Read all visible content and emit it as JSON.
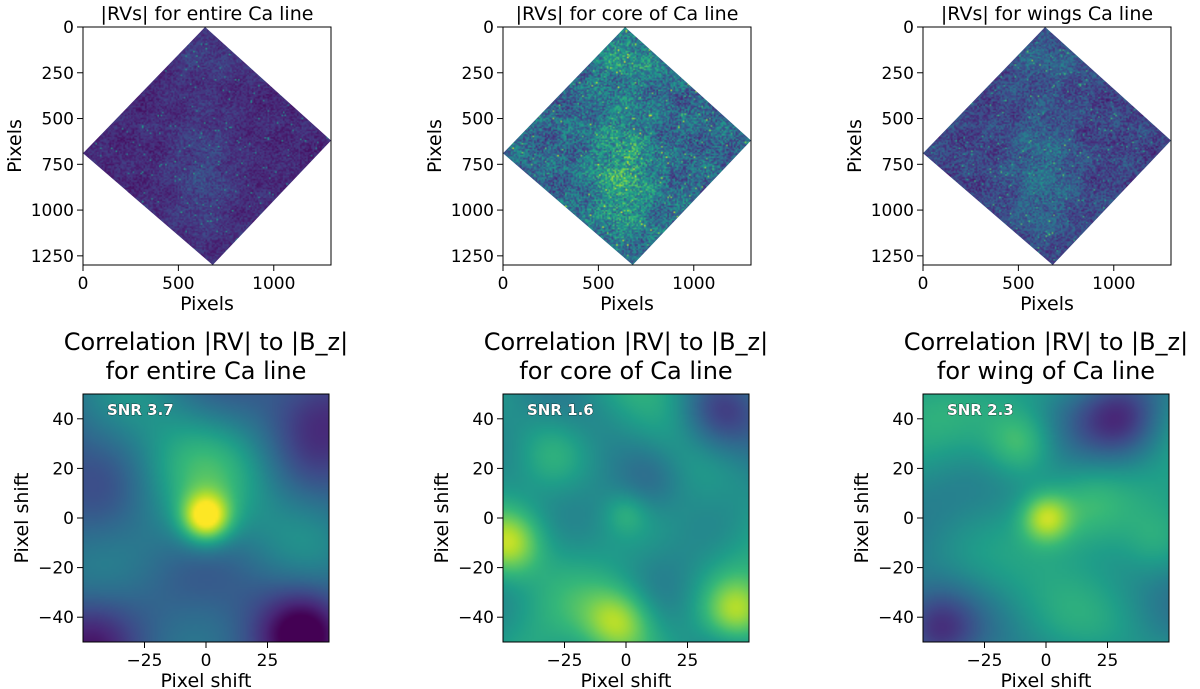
{
  "chart_data": [
    {
      "type": "heatmap",
      "title": "|RVs| for entire Ca line",
      "xlabel": "Pixels",
      "ylabel": "Pixels",
      "xlim": [
        0,
        1300
      ],
      "ylim": [
        1300,
        0
      ],
      "xticks": [
        0,
        500,
        1000
      ],
      "xtick_labels": [
        "0",
        "500",
        "1000"
      ],
      "yticks": [
        0,
        250,
        500,
        750,
        1000,
        1250
      ],
      "ytick_labels": [
        "0",
        "250",
        "500",
        "750",
        "1000",
        "1250"
      ],
      "diamond_vertices": [
        [
          640,
          0
        ],
        [
          1300,
          620
        ],
        [
          680,
          1300
        ],
        [
          0,
          690
        ]
      ],
      "colormap": "viridis",
      "intensity": 0.15,
      "structure": "uniform low-amplitude speckle"
    },
    {
      "type": "heatmap",
      "title": "|RVs| for core of Ca line",
      "xlabel": "Pixels",
      "ylabel": "Pixels",
      "xlim": [
        0,
        1300
      ],
      "ylim": [
        1300,
        0
      ],
      "xticks": [
        0,
        500,
        1000
      ],
      "xtick_labels": [
        "0",
        "500",
        "1000"
      ],
      "yticks": [
        0,
        250,
        500,
        750,
        1000,
        1250
      ],
      "ytick_labels": [
        "0",
        "250",
        "500",
        "750",
        "1000",
        "1250"
      ],
      "diamond_vertices": [
        [
          640,
          0
        ],
        [
          1300,
          620
        ],
        [
          680,
          1300
        ],
        [
          0,
          690
        ]
      ],
      "colormap": "viridis",
      "intensity": 0.42,
      "structure": "bright filamentary structure near center and top"
    },
    {
      "type": "heatmap",
      "title": "|RVs| for wings Ca line",
      "xlabel": "Pixels",
      "ylabel": "Pixels",
      "xlim": [
        0,
        1300
      ],
      "ylim": [
        1300,
        0
      ],
      "xticks": [
        0,
        500,
        1000
      ],
      "xtick_labels": [
        "0",
        "500",
        "1000"
      ],
      "yticks": [
        0,
        250,
        500,
        750,
        1000,
        1250
      ],
      "ytick_labels": [
        "0",
        "250",
        "500",
        "750",
        "1000",
        "1250"
      ],
      "diamond_vertices": [
        [
          640,
          0
        ],
        [
          1300,
          620
        ],
        [
          680,
          1300
        ],
        [
          0,
          690
        ]
      ],
      "colormap": "viridis",
      "intensity": 0.26,
      "structure": "moderate speckle with brighter patches"
    },
    {
      "type": "heatmap",
      "title_lines": [
        "Correlation |RV| to |B_z|",
        "for entire Ca line"
      ],
      "xlabel": "Pixel shift",
      "ylabel": "Pixel shift",
      "xlim": [
        -50,
        50
      ],
      "ylim": [
        -50,
        50
      ],
      "xticks": [
        -25,
        0,
        25
      ],
      "xtick_labels": [
        "−25",
        "0",
        "25"
      ],
      "yticks": [
        40,
        20,
        0,
        -20,
        -40
      ],
      "ytick_labels": [
        "40",
        "20",
        "0",
        "−20",
        "−40"
      ],
      "annotation": "SNR 3.7",
      "colormap": "viridis",
      "background_level": 0.33,
      "features": [
        {
          "x": 0,
          "y": 0,
          "amplitude": 0.58,
          "width": 7
        },
        {
          "x": 0,
          "y": 5,
          "amplitude": 0.22,
          "width": 22
        },
        {
          "x": -15,
          "y": 25,
          "amplitude": 0.08,
          "width": 16
        },
        {
          "x": 40,
          "y": -48,
          "amplitude": -0.28,
          "width": 12
        },
        {
          "x": -48,
          "y": -48,
          "amplitude": -0.22,
          "width": 14
        },
        {
          "x": 45,
          "y": 45,
          "amplitude": -0.18,
          "width": 14
        }
      ]
    },
    {
      "type": "heatmap",
      "title_lines": [
        "Correlation |RV| to |B_z|",
        "for core of Ca line"
      ],
      "xlabel": "Pixel shift",
      "ylabel": "Pixel shift",
      "xlim": [
        -50,
        50
      ],
      "ylim": [
        -50,
        50
      ],
      "xticks": [
        -25,
        0,
        25
      ],
      "xtick_labels": [
        "−25",
        "0",
        "25"
      ],
      "yticks": [
        40,
        20,
        0,
        -20,
        -40
      ],
      "ytick_labels": [
        "40",
        "20",
        "0",
        "−20",
        "−40"
      ],
      "annotation": "SNR 1.6",
      "colormap": "viridis",
      "background_level": 0.52,
      "features": [
        {
          "x": -3,
          "y": -42,
          "amplitude": 0.38,
          "width": 10
        },
        {
          "x": -48,
          "y": -10,
          "amplitude": 0.33,
          "width": 9
        },
        {
          "x": 45,
          "y": -38,
          "amplitude": 0.3,
          "width": 9
        },
        {
          "x": 38,
          "y": 42,
          "amplitude": -0.3,
          "width": 12
        },
        {
          "x": 10,
          "y": 15,
          "amplitude": -0.14,
          "width": 10
        },
        {
          "x": 0,
          "y": 2,
          "amplitude": 0.12,
          "width": 6
        },
        {
          "x": -30,
          "y": 25,
          "amplitude": 0.14,
          "width": 10
        }
      ]
    },
    {
      "type": "heatmap",
      "title_lines": [
        "Correlation |RV| to |B_z|",
        "for wing of Ca line"
      ],
      "xlabel": "Pixel shift",
      "ylabel": "Pixel shift",
      "xlim": [
        -50,
        50
      ],
      "ylim": [
        -50,
        50
      ],
      "xticks": [
        -25,
        0,
        25
      ],
      "xtick_labels": [
        "−25",
        "0",
        "25"
      ],
      "yticks": [
        40,
        20,
        0,
        -20,
        -40
      ],
      "ytick_labels": [
        "40",
        "20",
        "0",
        "−20",
        "−40"
      ],
      "annotation": "SNR 2.3",
      "colormap": "viridis",
      "background_level": 0.5,
      "features": [
        {
          "x": 0,
          "y": 0,
          "amplitude": 0.36,
          "width": 7
        },
        {
          "x": -10,
          "y": 30,
          "amplitude": 0.26,
          "width": 10
        },
        {
          "x": 18,
          "y": 5,
          "amplitude": 0.15,
          "width": 12
        },
        {
          "x": 30,
          "y": 40,
          "amplitude": -0.28,
          "width": 12
        },
        {
          "x": -45,
          "y": -45,
          "amplitude": -0.32,
          "width": 12
        },
        {
          "x": 45,
          "y": -10,
          "amplitude": 0.12,
          "width": 10
        }
      ]
    }
  ]
}
